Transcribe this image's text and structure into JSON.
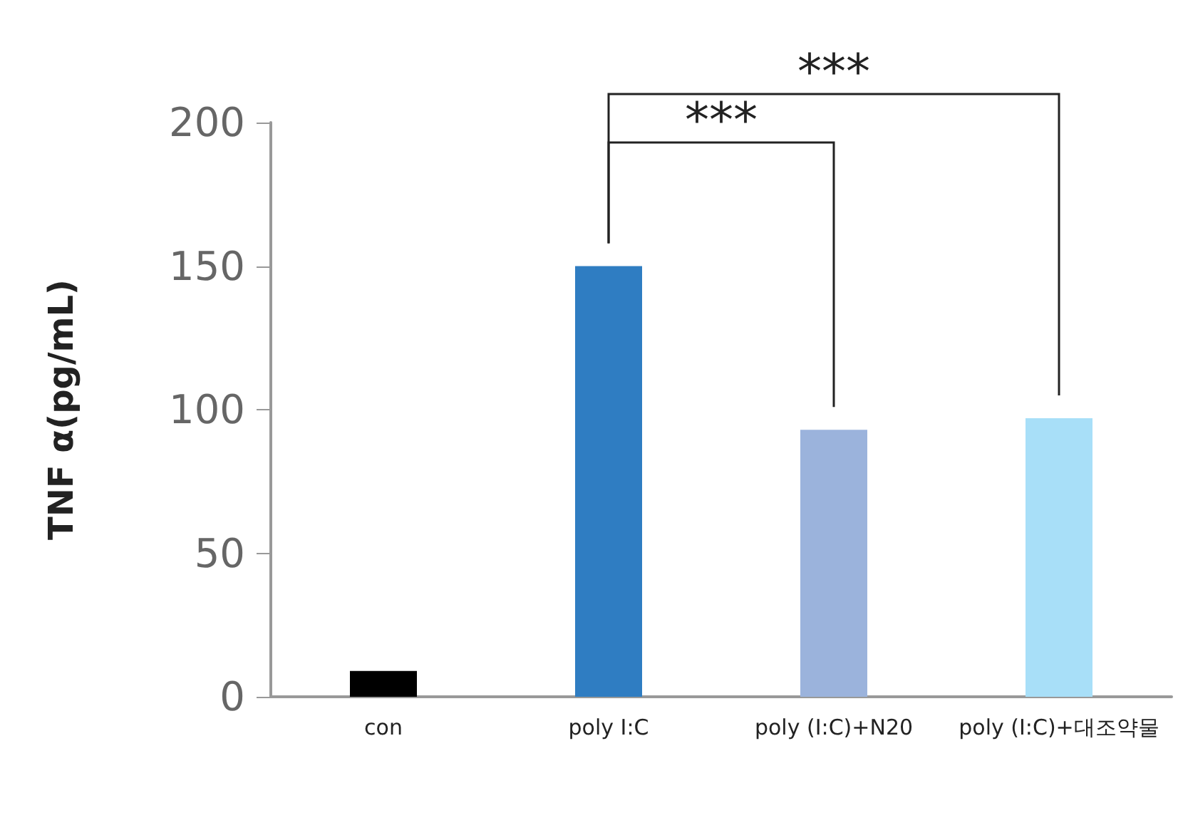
{
  "chart_data": {
    "type": "bar",
    "ylabel": "TNF α(pg/mL)",
    "categories": [
      "con",
      "poly I:C",
      "poly (I:C)+N20",
      "poly (I:C)+대조약물"
    ],
    "values": [
      9,
      150,
      93,
      97
    ],
    "colors": [
      "#000000",
      "#2f7dc2",
      "#9bb3dc",
      "#a8dff8"
    ],
    "ylim": [
      0,
      200
    ],
    "yticks": [
      0,
      50,
      100,
      150,
      200
    ],
    "grid": false,
    "annotations": [
      "***",
      "***"
    ]
  }
}
